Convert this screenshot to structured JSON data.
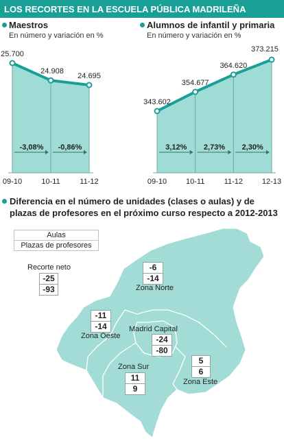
{
  "header": {
    "title": "LOS RECORTES EN LA ESCUELA PÚBLICA MADRILEÑA"
  },
  "colors": {
    "accent": "#1a9f97",
    "area_fill": "#9fdcd6",
    "map_fill": "#a3dcd6"
  },
  "chart_data": [
    {
      "type": "area",
      "title": "Maestros",
      "subtitle": "En número y variación en %",
      "x": [
        "09-10",
        "10-11",
        "11-12"
      ],
      "values": [
        25700,
        24908,
        24695
      ],
      "value_labels": [
        "25.700",
        "24.908",
        "24.695"
      ],
      "variations": [
        "-3,08%",
        "-0,86%"
      ]
    },
    {
      "type": "area",
      "title": "Alumnos de infantil y primaria",
      "subtitle": "En número y variación en %",
      "x": [
        "09-10",
        "10-11",
        "11-12",
        "12-13"
      ],
      "values": [
        343602,
        354677,
        364620,
        373215
      ],
      "value_labels": [
        "343.602",
        "354.677",
        "364.620",
        "373.215"
      ],
      "variations": [
        "3,12%",
        "2,73%",
        "2,30%"
      ]
    }
  ],
  "map": {
    "title": "Diferencia en el número de unidades (clases o aulas) y de plazas de profesores en el próximo curso respecto a 2012-2013",
    "legend": {
      "aulas": "Aulas",
      "plazas": "Plazas de profesores"
    },
    "neto": {
      "label": "Recorte neto",
      "aulas": "-25",
      "plazas": "-93"
    },
    "zones": [
      {
        "name": "Zona Norte",
        "aulas": "-6",
        "plazas": "-14"
      },
      {
        "name": "Zona Oeste",
        "aulas": "-11",
        "plazas": "-14"
      },
      {
        "name": "Madrid Capital",
        "aulas": "-24",
        "plazas": "-80"
      },
      {
        "name": "Zona Sur",
        "aulas": "11",
        "plazas": "9"
      },
      {
        "name": "Zona Este",
        "aulas": "5",
        "plazas": "6"
      }
    ]
  }
}
